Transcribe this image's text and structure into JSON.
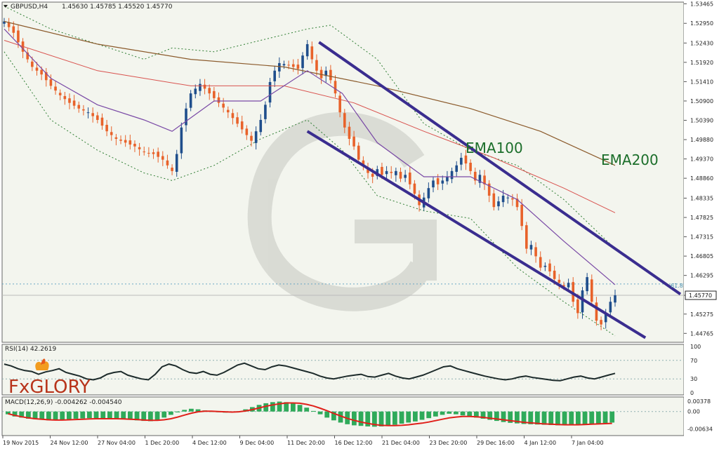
{
  "header": {
    "symbol": "GBPUSD,H4",
    "ohlc": "1.45630 1.45785 1.45520 1.45770"
  },
  "colors": {
    "background": "#f3f5ee",
    "bull_candle": "#1f4e8c",
    "bear_candle": "#e8622a",
    "ema100": "#d9534f",
    "ema200": "#8b5a2b",
    "fast_ma": "#7a4aa6",
    "bollinger": "#2e7d32",
    "channel": "#3a2d8f",
    "rsi_line": "#1d2b2b",
    "macd_histogram": "#2faa5a",
    "macd_signal": "#e0201a",
    "ema_label": "#1b6e2a"
  },
  "icons": {
    "symbol_dropdown": "triangle-down-icon",
    "brand": "fxglory-logo"
  },
  "brand": {
    "name": "FxGLORY"
  },
  "chart_data": [
    {
      "type": "candlestick",
      "title": "GBPUSD,H4",
      "ylim": [
        1.4453,
        1.5351
      ],
      "y_ticks": [
        "1.53465",
        "1.52950",
        "1.52430",
        "1.51920",
        "1.51410",
        "1.50900",
        "1.50390",
        "1.49880",
        "1.49370",
        "1.48860",
        "1.48335",
        "1.47825",
        "1.47315",
        "1.46805",
        "1.46295",
        "1.45770",
        "1.45275",
        "1.44765"
      ],
      "last_price": "1.45770",
      "fib_level": {
        "label": "61.8",
        "value": 1.4607
      },
      "x_ticks": [
        "19 Nov 2015",
        "24 Nov 12:00",
        "27 Nov 04:00",
        "1 Dec 20:00",
        "4 Dec 12:00",
        "9 Dec 04:00",
        "11 Dec 20:00",
        "16 Dec 12:00",
        "21 Dec 04:00",
        "23 Dec 20:00",
        "29 Dec 16:00",
        "4 Jan 12:00",
        "7 Jan 04:00"
      ],
      "annotations": [
        "EMA100",
        "EMA200"
      ],
      "close_path": [
        [
          0,
          1.53
        ],
        [
          4,
          1.527
        ],
        [
          8,
          1.522
        ],
        [
          12,
          1.518
        ],
        [
          16,
          1.516
        ],
        [
          20,
          1.513
        ],
        [
          24,
          1.5105
        ],
        [
          28,
          1.5085
        ],
        [
          32,
          1.507
        ],
        [
          36,
          1.506
        ],
        [
          40,
          1.504
        ],
        [
          44,
          1.501
        ],
        [
          48,
          1.499
        ],
        [
          52,
          1.498
        ],
        [
          56,
          1.497
        ],
        [
          60,
          1.4955
        ],
        [
          64,
          1.495
        ],
        [
          68,
          1.4935
        ],
        [
          72,
          1.4905
        ],
        [
          74,
          1.495
        ],
        [
          76,
          1.502
        ],
        [
          78,
          1.507
        ],
        [
          80,
          1.511
        ],
        [
          84,
          1.5135
        ],
        [
          88,
          1.511
        ],
        [
          92,
          1.5085
        ],
        [
          96,
          1.506
        ],
        [
          100,
          1.503
        ],
        [
          104,
          1.5
        ],
        [
          106,
          1.4985
        ],
        [
          108,
          1.501
        ],
        [
          110,
          1.504
        ],
        [
          112,
          1.508
        ],
        [
          114,
          1.514
        ],
        [
          116,
          1.517
        ],
        [
          118,
          1.519
        ],
        [
          122,
          1.5185
        ],
        [
          126,
          1.5175
        ],
        [
          128,
          1.521
        ],
        [
          130,
          1.524
        ],
        [
          132,
          1.52
        ],
        [
          134,
          1.517
        ],
        [
          136,
          1.515
        ],
        [
          138,
          1.517
        ],
        [
          140,
          1.5145
        ],
        [
          142,
          1.511
        ],
        [
          144,
          1.506
        ],
        [
          146,
          1.502
        ],
        [
          148,
          1.499
        ],
        [
          150,
          1.497
        ],
        [
          152,
          1.4935
        ],
        [
          154,
          1.492
        ],
        [
          156,
          1.49
        ],
        [
          158,
          1.489
        ],
        [
          160,
          1.491
        ],
        [
          162,
          1.4895
        ],
        [
          164,
          1.4905
        ],
        [
          166,
          1.49
        ],
        [
          168,
          1.4905
        ],
        [
          170,
          1.4885
        ],
        [
          172,
          1.4895
        ],
        [
          174,
          1.487
        ],
        [
          176,
          1.4845
        ],
        [
          178,
          1.4815
        ],
        [
          180,
          1.4835
        ],
        [
          182,
          1.486
        ],
        [
          184,
          1.488
        ],
        [
          186,
          1.487
        ],
        [
          188,
          1.488
        ],
        [
          190,
          1.489
        ],
        [
          192,
          1.4905
        ],
        [
          194,
          1.492
        ],
        [
          196,
          1.494
        ],
        [
          198,
          1.4925
        ],
        [
          200,
          1.4905
        ],
        [
          202,
          1.488
        ],
        [
          204,
          1.4895
        ],
        [
          206,
          1.487
        ],
        [
          208,
          1.484
        ],
        [
          210,
          1.481
        ],
        [
          212,
          1.4825
        ],
        [
          214,
          1.484
        ],
        [
          216,
          1.4835
        ],
        [
          218,
          1.483
        ],
        [
          220,
          1.481
        ],
        [
          222,
          1.476
        ],
        [
          224,
          1.47
        ],
        [
          226,
          1.471
        ],
        [
          228,
          1.468
        ],
        [
          230,
          1.465
        ],
        [
          232,
          1.4655
        ],
        [
          234,
          1.464
        ],
        [
          236,
          1.462
        ],
        [
          238,
          1.461
        ],
        [
          240,
          1.46
        ],
        [
          242,
          1.461
        ],
        [
          244,
          1.456
        ],
        [
          246,
          1.453
        ],
        [
          248,
          1.459
        ],
        [
          250,
          1.4625
        ],
        [
          252,
          1.456
        ],
        [
          254,
          1.451
        ],
        [
          256,
          1.45
        ],
        [
          258,
          1.453
        ],
        [
          260,
          1.456
        ],
        [
          262,
          1.4577
        ]
      ],
      "series": [
        {
          "name": "EMA100",
          "points": [
            [
              0,
              1.525
            ],
            [
              40,
              1.517
            ],
            [
              80,
              1.513
            ],
            [
              120,
              1.513
            ],
            [
              150,
              1.5085
            ],
            [
              180,
              1.501
            ],
            [
              210,
              1.494
            ],
            [
              240,
              1.486
            ],
            [
              262,
              1.4795
            ]
          ]
        },
        {
          "name": "EMA200",
          "points": [
            [
              0,
              1.53
            ],
            [
              40,
              1.524
            ],
            [
              80,
              1.52
            ],
            [
              120,
              1.518
            ],
            [
              160,
              1.513
            ],
            [
              200,
              1.507
            ],
            [
              230,
              1.501
            ],
            [
              262,
              1.492
            ]
          ]
        }
      ],
      "fast_ma": [
        [
          0,
          1.528
        ],
        [
          20,
          1.515
        ],
        [
          40,
          1.508
        ],
        [
          60,
          1.504
        ],
        [
          72,
          1.501
        ],
        [
          90,
          1.509
        ],
        [
          110,
          1.509
        ],
        [
          130,
          1.517
        ],
        [
          145,
          1.511
        ],
        [
          160,
          1.498
        ],
        [
          180,
          1.489
        ],
        [
          200,
          1.489
        ],
        [
          220,
          1.483
        ],
        [
          240,
          1.472
        ],
        [
          262,
          1.4605
        ]
      ],
      "bollinger_upper": [
        [
          0,
          1.534
        ],
        [
          20,
          1.528
        ],
        [
          40,
          1.524
        ],
        [
          60,
          1.52
        ],
        [
          72,
          1.523
        ],
        [
          90,
          1.522
        ],
        [
          110,
          1.525
        ],
        [
          130,
          1.528
        ],
        [
          140,
          1.529
        ],
        [
          160,
          1.52
        ],
        [
          180,
          1.503
        ],
        [
          200,
          1.496
        ],
        [
          220,
          1.492
        ],
        [
          240,
          1.483
        ],
        [
          262,
          1.47
        ]
      ],
      "bollinger_lower": [
        [
          0,
          1.522
        ],
        [
          20,
          1.504
        ],
        [
          40,
          1.496
        ],
        [
          60,
          1.49
        ],
        [
          72,
          1.488
        ],
        [
          90,
          1.492
        ],
        [
          110,
          1.499
        ],
        [
          130,
          1.504
        ],
        [
          145,
          1.496
        ],
        [
          160,
          1.484
        ],
        [
          180,
          1.48
        ],
        [
          200,
          1.478
        ],
        [
          220,
          1.465
        ],
        [
          240,
          1.456
        ],
        [
          262,
          1.447
        ]
      ],
      "channel_upper": [
        [
          135,
          1.5245
        ],
        [
          290,
          1.458
        ]
      ],
      "channel_lower": [
        [
          130,
          1.501
        ],
        [
          275,
          1.4465
        ]
      ]
    },
    {
      "type": "line",
      "title": "RSI(14) 42.2619",
      "ylim": [
        0,
        100
      ],
      "y_ticks": [
        "100",
        "70",
        "30",
        "0"
      ],
      "levels": [
        70,
        30
      ],
      "values": [
        62,
        58,
        52,
        48,
        46,
        40,
        45,
        48,
        52,
        44,
        40,
        36,
        30,
        28,
        32,
        40,
        44,
        46,
        38,
        34,
        30,
        28,
        40,
        56,
        62,
        58,
        50,
        44,
        42,
        46,
        40,
        38,
        44,
        52,
        60,
        64,
        58,
        52,
        50,
        56,
        60,
        58,
        54,
        50,
        46,
        42,
        36,
        32,
        30,
        33,
        36,
        38,
        40,
        35,
        34,
        38,
        42,
        36,
        32,
        30,
        34,
        38,
        44,
        50,
        56,
        58,
        52,
        48,
        44,
        40,
        36,
        33,
        30,
        28,
        30,
        34,
        36,
        33,
        31,
        29,
        27,
        26,
        30,
        34,
        36,
        32,
        30,
        34,
        38,
        42
      ]
    },
    {
      "type": "bar",
      "title": "MACD(12,26,9) -0.004262 -0.004540",
      "ylim": [
        -0.0082,
        0.0045
      ],
      "y_ticks": [
        "0.00378",
        "0.00",
        "-0.00634"
      ],
      "histogram": [
        -0.001,
        -0.0018,
        -0.0022,
        -0.0026,
        -0.0028,
        -0.003,
        -0.0032,
        -0.0031,
        -0.003,
        -0.0028,
        -0.0026,
        -0.0025,
        -0.0024,
        -0.0024,
        -0.0025,
        -0.0026,
        -0.0027,
        -0.0028,
        -0.003,
        -0.0032,
        -0.0034,
        -0.0035,
        -0.003,
        -0.0022,
        -0.0012,
        -0.0003,
        0.0006,
        0.001,
        0.0008,
        0.0004,
        0.0001,
        -0.0002,
        -0.0004,
        -0.0003,
        0.0001,
        0.0008,
        0.0016,
        0.0024,
        0.003,
        0.0034,
        0.0036,
        0.0034,
        0.003,
        0.0024,
        0.0014,
        0.0002,
        -0.001,
        -0.0022,
        -0.0032,
        -0.004,
        -0.0046,
        -0.005,
        -0.0052,
        -0.0054,
        -0.0055,
        -0.0054,
        -0.0052,
        -0.0048,
        -0.0044,
        -0.004,
        -0.0036,
        -0.003,
        -0.0024,
        -0.0018,
        -0.0012,
        -0.0008,
        -0.001,
        -0.0014,
        -0.0018,
        -0.0022,
        -0.0026,
        -0.003,
        -0.0034,
        -0.0038,
        -0.0041,
        -0.0043,
        -0.0045,
        -0.0046,
        -0.0047,
        -0.0048,
        -0.0049,
        -0.005,
        -0.0049,
        -0.0048,
        -0.0047,
        -0.0046,
        -0.0045,
        -0.0043,
        -0.0042,
        -0.004
      ],
      "signal": [
        -0.0008,
        -0.0014,
        -0.0019,
        -0.0023,
        -0.0026,
        -0.0028,
        -0.003,
        -0.0031,
        -0.0031,
        -0.003,
        -0.0029,
        -0.0028,
        -0.0027,
        -0.0026,
        -0.0026,
        -0.0026,
        -0.0026,
        -0.0027,
        -0.0028,
        -0.0029,
        -0.0031,
        -0.0032,
        -0.0032,
        -0.003,
        -0.0026,
        -0.002,
        -0.0013,
        -0.0006,
        -0.0001,
        0.0001,
        0.0001,
        0.0,
        -0.0001,
        -0.0002,
        -0.0001,
        0.0002,
        0.0007,
        0.0013,
        0.0019,
        0.0024,
        0.0028,
        0.0031,
        0.0031,
        0.003,
        0.0026,
        0.002,
        0.0012,
        0.0003,
        -0.0007,
        -0.0016,
        -0.0025,
        -0.0032,
        -0.0038,
        -0.0043,
        -0.0047,
        -0.005,
        -0.0051,
        -0.0051,
        -0.005,
        -0.0048,
        -0.0045,
        -0.0042,
        -0.0038,
        -0.0033,
        -0.0028,
        -0.0023,
        -0.002,
        -0.0018,
        -0.0018,
        -0.0019,
        -0.0021,
        -0.0024,
        -0.0027,
        -0.003,
        -0.0033,
        -0.0036,
        -0.0039,
        -0.0041,
        -0.0043,
        -0.0045,
        -0.0046,
        -0.0047,
        -0.0048,
        -0.0048,
        -0.0048,
        -0.0047,
        -0.0046,
        -0.0045,
        -0.0044,
        -0.0043
      ]
    }
  ]
}
